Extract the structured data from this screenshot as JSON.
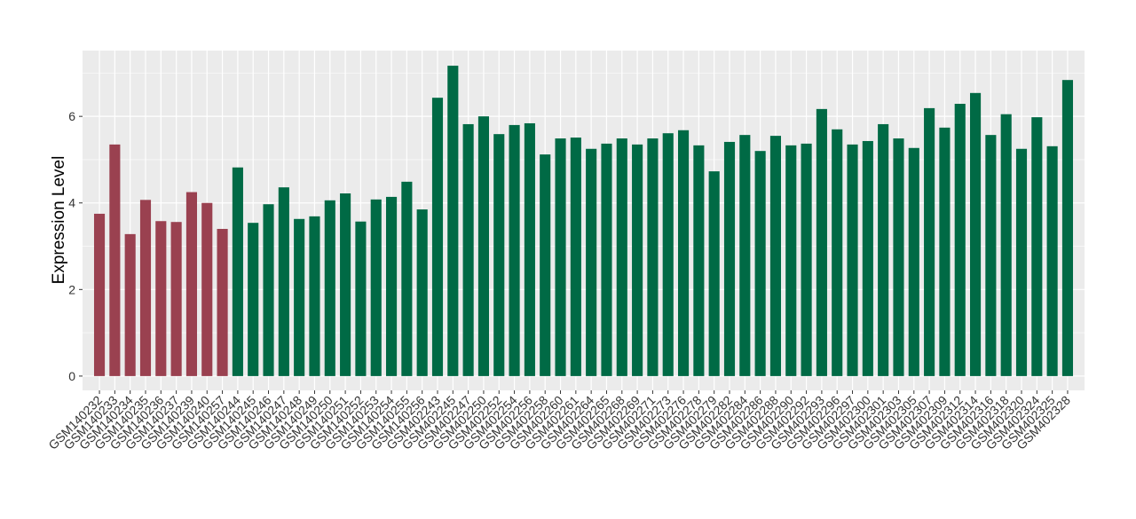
{
  "chart_data": {
    "type": "bar",
    "y_label": "Expression Level",
    "categories": [
      "GSM140232",
      "GSM140233",
      "GSM140234",
      "GSM140235",
      "GSM140236",
      "GSM140237",
      "GSM140239",
      "GSM140240",
      "GSM140257",
      "GSM140244",
      "GSM140245",
      "GSM140246",
      "GSM140247",
      "GSM140248",
      "GSM140249",
      "GSM140250",
      "GSM140251",
      "GSM140252",
      "GSM140253",
      "GSM140254",
      "GSM140255",
      "GSM140256",
      "GSM402243",
      "GSM402245",
      "GSM402247",
      "GSM402250",
      "GSM402252",
      "GSM402254",
      "GSM402256",
      "GSM402258",
      "GSM402260",
      "GSM402261",
      "GSM402264",
      "GSM402265",
      "GSM402268",
      "GSM402269",
      "GSM402271",
      "GSM402273",
      "GSM402276",
      "GSM402278",
      "GSM402279",
      "GSM402282",
      "GSM402284",
      "GSM402286",
      "GSM402288",
      "GSM402290",
      "GSM402292",
      "GSM402293",
      "GSM402296",
      "GSM402297",
      "GSM402300",
      "GSM402301",
      "GSM402303",
      "GSM402305",
      "GSM402307",
      "GSM402309",
      "GSM402312",
      "GSM402314",
      "GSM402316",
      "GSM402318",
      "GSM402320",
      "GSM402324",
      "GSM402325",
      "GSM402328"
    ],
    "values": [
      3.75,
      5.35,
      3.28,
      4.07,
      3.58,
      3.56,
      4.25,
      4.0,
      3.4,
      4.82,
      3.54,
      3.97,
      4.36,
      3.63,
      3.69,
      4.06,
      4.22,
      3.57,
      4.08,
      4.14,
      4.49,
      3.85,
      6.43,
      7.17,
      5.82,
      6.0,
      5.59,
      5.8,
      5.84,
      5.12,
      5.49,
      5.51,
      5.25,
      5.37,
      5.49,
      5.35,
      5.49,
      5.61,
      5.68,
      5.33,
      4.73,
      5.41,
      5.57,
      5.2,
      5.55,
      5.33,
      5.37,
      6.17,
      5.7,
      5.35,
      5.43,
      5.82,
      5.49,
      5.27,
      6.19,
      5.74,
      6.29,
      6.54,
      5.57,
      6.05,
      5.25,
      5.98,
      5.31,
      6.84
    ],
    "colors": [
      "#9a4150",
      "#9a4150",
      "#9a4150",
      "#9a4150",
      "#9a4150",
      "#9a4150",
      "#9a4150",
      "#9a4150",
      "#9a4150",
      "#006a45",
      "#006a45",
      "#006a45",
      "#006a45",
      "#006a45",
      "#006a45",
      "#006a45",
      "#006a45",
      "#006a45",
      "#006a45",
      "#006a45",
      "#006a45",
      "#006a45",
      "#006a45",
      "#006a45",
      "#006a45",
      "#006a45",
      "#006a45",
      "#006a45",
      "#006a45",
      "#006a45",
      "#006a45",
      "#006a45",
      "#006a45",
      "#006a45",
      "#006a45",
      "#006a45",
      "#006a45",
      "#006a45",
      "#006a45",
      "#006a45",
      "#006a45",
      "#006a45",
      "#006a45",
      "#006a45",
      "#006a45",
      "#006a45",
      "#006a45",
      "#006a45",
      "#006a45",
      "#006a45",
      "#006a45",
      "#006a45",
      "#006a45",
      "#006a45",
      "#006a45",
      "#006a45",
      "#006a45",
      "#006a45",
      "#006a45",
      "#006a45",
      "#006a45",
      "#006a45",
      "#006a45",
      "#006a45"
    ],
    "ylim": [
      -0.33,
      7.52
    ],
    "yticks": [
      0,
      2,
      4,
      6
    ],
    "grid": true
  }
}
